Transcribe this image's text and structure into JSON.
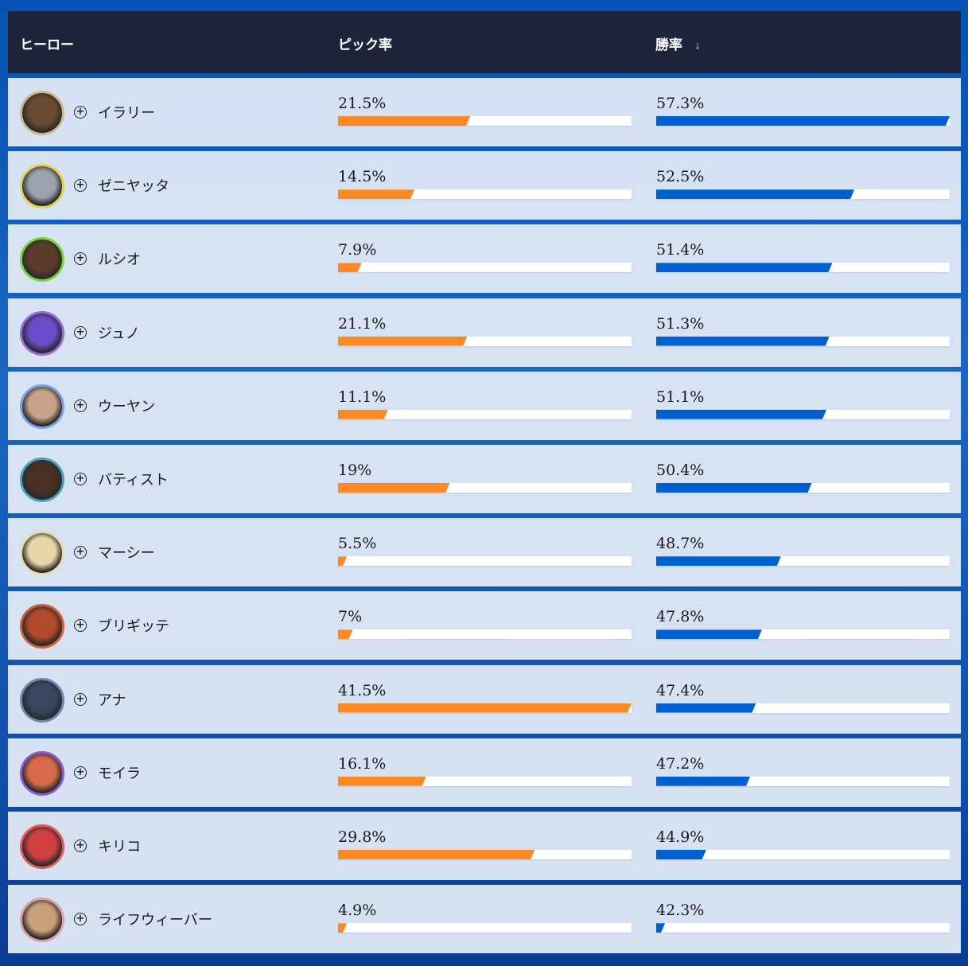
{
  "header": {
    "hero": "ヒーロー",
    "pick": "ピック率",
    "win": "勝率",
    "sort_icon": "↓"
  },
  "rows": [
    {
      "name": "イラリー",
      "pick": "21.5%",
      "pick_fill": 0.45,
      "win": "57.3%",
      "win_fill": 1.0,
      "ring": "#c9b98a",
      "face": "#6b4a34"
    },
    {
      "name": "ゼニヤッタ",
      "pick": "14.5%",
      "pick_fill": 0.26,
      "win": "52.5%",
      "win_fill": 0.675,
      "ring": "#e6d24a",
      "face": "#9aa3ad"
    },
    {
      "name": "ルシオ",
      "pick": "7.9%",
      "pick_fill": 0.08,
      "win": "51.4%",
      "win_fill": 0.6,
      "ring": "#7bd23a",
      "face": "#5c3b2a"
    },
    {
      "name": "ジュノ",
      "pick": "21.1%",
      "pick_fill": 0.44,
      "win": "51.3%",
      "win_fill": 0.59,
      "ring": "#9a6ad6",
      "face": "#6a4cc8"
    },
    {
      "name": "ウーヤン",
      "pick": "11.1%",
      "pick_fill": 0.17,
      "win": "51.1%",
      "win_fill": 0.58,
      "ring": "#7aa0e6",
      "face": "#c9a28a"
    },
    {
      "name": "バティスト",
      "pick": "19%",
      "pick_fill": 0.38,
      "win": "50.4%",
      "win_fill": 0.53,
      "ring": "#4aa0b8",
      "face": "#4a3024"
    },
    {
      "name": "マーシー",
      "pick": "5.5%",
      "pick_fill": 0.03,
      "win": "48.7%",
      "win_fill": 0.425,
      "ring": "#e6dcb0",
      "face": "#e8d6a8"
    },
    {
      "name": "ブリギッテ",
      "pick": "7%",
      "pick_fill": 0.05,
      "win": "47.8%",
      "win_fill": 0.36,
      "ring": "#c8603a",
      "face": "#b04a2a"
    },
    {
      "name": "アナ",
      "pick": "41.5%",
      "pick_fill": 1.0,
      "win": "47.4%",
      "win_fill": 0.34,
      "ring": "#6a88b0",
      "face": "#3a4660"
    },
    {
      "name": "モイラ",
      "pick": "16.1%",
      "pick_fill": 0.3,
      "win": "47.2%",
      "win_fill": 0.32,
      "ring": "#8a5ad0",
      "face": "#d86a4a"
    },
    {
      "name": "キリコ",
      "pick": "29.8%",
      "pick_fill": 0.67,
      "win": "44.9%",
      "win_fill": 0.17,
      "ring": "#e05a5a",
      "face": "#d04040"
    },
    {
      "name": "ライフウィーバー",
      "pick": "4.9%",
      "pick_fill": 0.03,
      "win": "42.3%",
      "win_fill": 0.03,
      "ring": "#d8a0b0",
      "face": "#c9a07a"
    }
  ]
}
